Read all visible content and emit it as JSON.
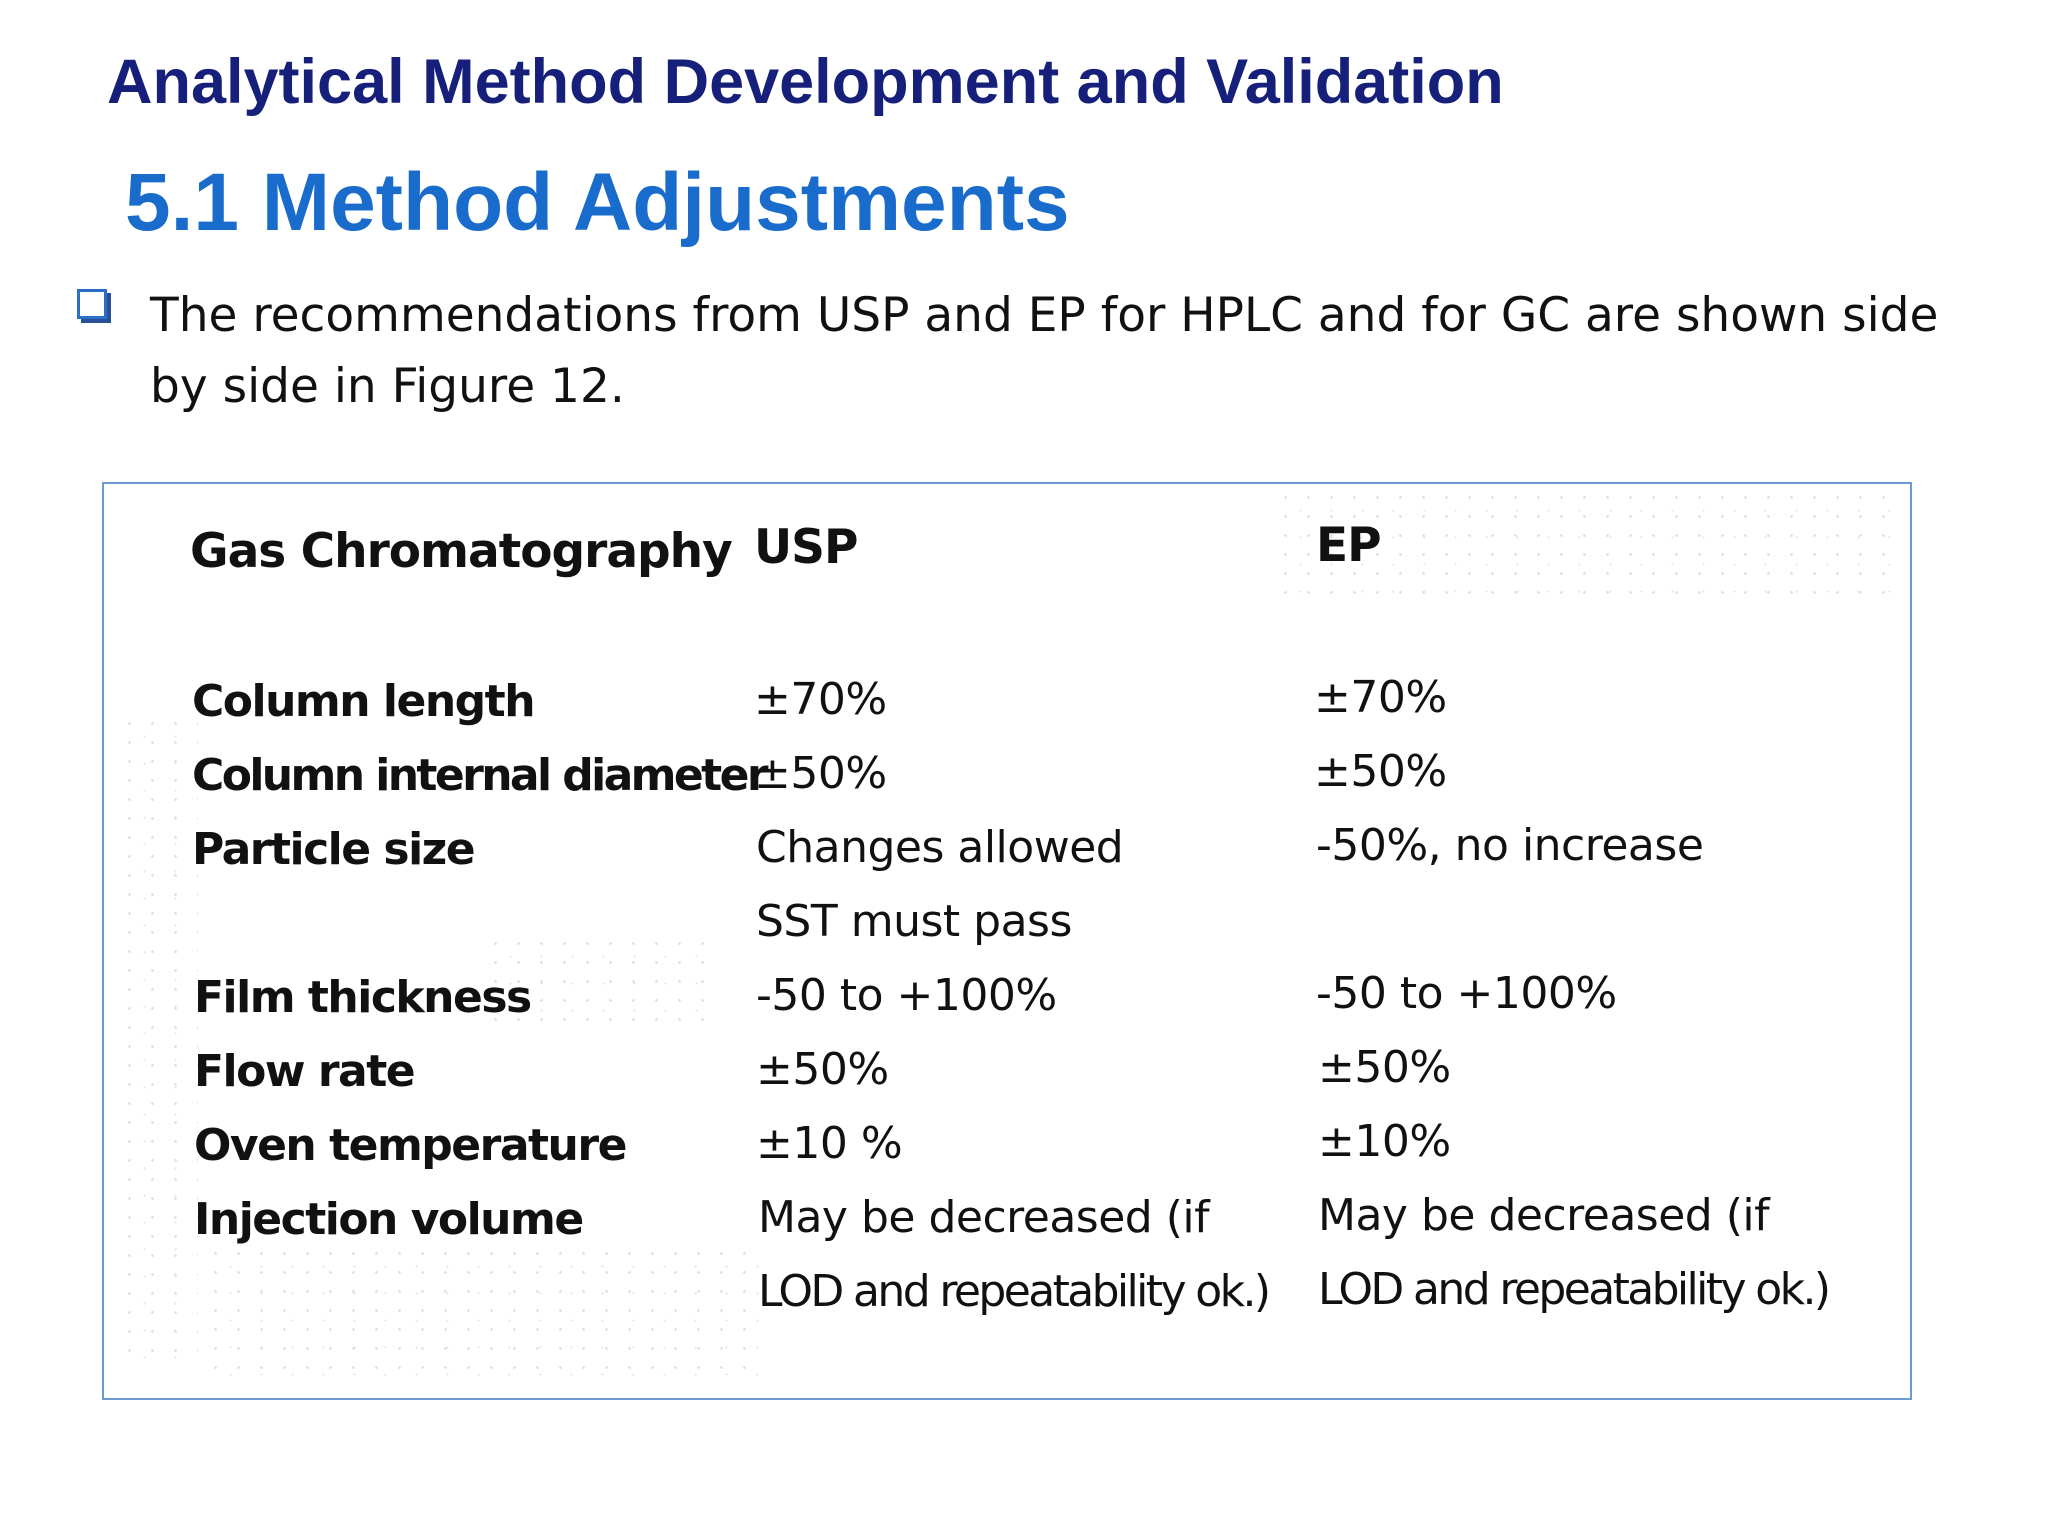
{
  "header": {
    "title": "Analytical Method Development and Validation",
    "section_title": "5.1 Method Adjustments"
  },
  "bullet": {
    "icon": "checkbox-square-icon",
    "text": "The recommendations from USP and EP for HPLC and for GC are shown side by side in Figure 12."
  },
  "figure": {
    "columns": [
      "Gas Chromatography",
      "USP",
      "EP"
    ],
    "rows": [
      {
        "parameter": "Column length",
        "usp": "±70%",
        "ep": "±70%"
      },
      {
        "parameter": "Column internal diameter",
        "usp": "±50%",
        "ep": "±50%"
      },
      {
        "parameter": "Particle size",
        "usp": "Changes allowed",
        "usp_line2": "SST must pass",
        "ep": "-50%, no increase"
      },
      {
        "parameter": "Film thickness",
        "usp": "-50 to +100%",
        "ep": "-50 to +100%"
      },
      {
        "parameter": "Flow rate",
        "usp": "±50%",
        "ep": "±50%"
      },
      {
        "parameter": "Oven temperature",
        "usp": "±10 %",
        "ep": "±10%"
      },
      {
        "parameter": "Injection volume",
        "usp": "May be decreased (if",
        "usp_line2": "LOD and repeatability ok.)",
        "ep": "May be decreased (if",
        "ep_line2": "LOD and repeatability ok.)"
      }
    ]
  }
}
